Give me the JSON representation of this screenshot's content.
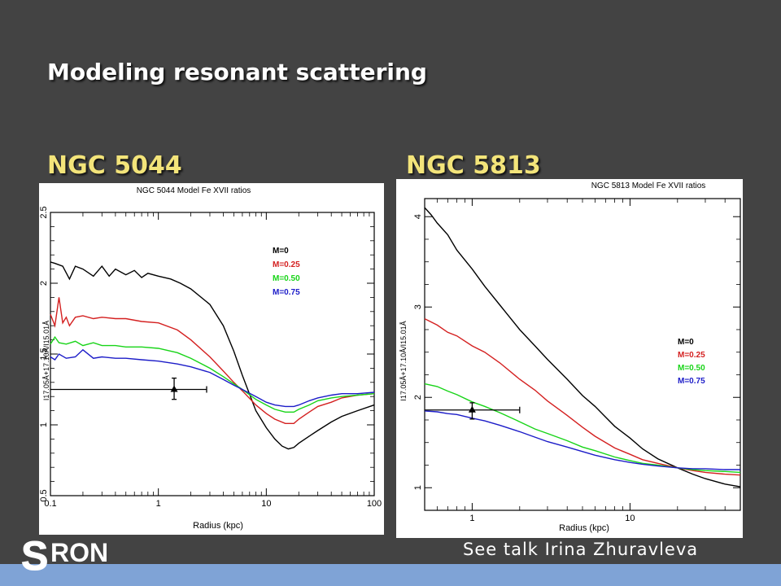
{
  "slide": {
    "title": "Modeling resonant scattering",
    "credit": "See talk Irina Zhuravleva",
    "logo_text": "SRON"
  },
  "colors": {
    "background": "#434343",
    "title": "#ffffff",
    "subtitle": "#f3e47a",
    "footer": "#7fa3d6"
  },
  "chart_data": [
    {
      "type": "line",
      "heading": "NGC 5044",
      "title": "NGC 5044 Model Fe XVII ratios",
      "xlabel": "Radius (kpc)",
      "ylabel": "I17.05Å+17.10Å/I15.01Å",
      "xscale": "log",
      "xlim": [
        0.1,
        100
      ],
      "ylim": [
        0.5,
        2.5
      ],
      "xticks": [
        "0.1",
        "1",
        "10",
        "100"
      ],
      "yticks": [
        "0.5",
        "1",
        "1.5",
        "2",
        "2.5"
      ],
      "legend_position": "upper-right",
      "series": [
        {
          "name": "M=0",
          "color": "#000000",
          "x": [
            0.1,
            0.11,
            0.13,
            0.15,
            0.17,
            0.2,
            0.25,
            0.3,
            0.35,
            0.4,
            0.5,
            0.6,
            0.7,
            0.8,
            1.0,
            1.3,
            1.6,
            2.0,
            3.0,
            4.0,
            5.0,
            6.0,
            8.0,
            10.0,
            12.0,
            14.0,
            16.0,
            18.0,
            20.0,
            25.0,
            30.0,
            40.0,
            50.0,
            70.0,
            100.0
          ],
          "y": [
            2.15,
            2.14,
            2.12,
            2.03,
            2.12,
            2.1,
            2.05,
            2.12,
            2.05,
            2.1,
            2.06,
            2.09,
            2.04,
            2.07,
            2.05,
            2.03,
            2.0,
            1.96,
            1.85,
            1.7,
            1.52,
            1.35,
            1.1,
            0.98,
            0.9,
            0.85,
            0.83,
            0.84,
            0.87,
            0.92,
            0.96,
            1.02,
            1.06,
            1.1,
            1.14
          ]
        },
        {
          "name": "M=0.25",
          "color": "#d42020",
          "x": [
            0.1,
            0.11,
            0.12,
            0.13,
            0.14,
            0.15,
            0.17,
            0.2,
            0.25,
            0.3,
            0.4,
            0.5,
            0.7,
            1.0,
            1.5,
            2.0,
            3.0,
            4.0,
            5.0,
            6.0,
            8.0,
            10.0,
            12.0,
            15.0,
            18.0,
            20.0,
            25.0,
            30.0,
            40.0,
            50.0,
            70.0,
            100.0
          ],
          "y": [
            1.78,
            1.7,
            1.9,
            1.72,
            1.76,
            1.7,
            1.76,
            1.77,
            1.75,
            1.76,
            1.75,
            1.75,
            1.73,
            1.72,
            1.67,
            1.6,
            1.48,
            1.38,
            1.3,
            1.24,
            1.14,
            1.08,
            1.04,
            1.01,
            1.01,
            1.04,
            1.09,
            1.13,
            1.16,
            1.19,
            1.21,
            1.22
          ]
        },
        {
          "name": "M=0.50",
          "color": "#18d418",
          "x": [
            0.1,
            0.11,
            0.12,
            0.14,
            0.17,
            0.2,
            0.25,
            0.3,
            0.4,
            0.5,
            0.7,
            1.0,
            1.5,
            2.0,
            3.0,
            4.0,
            5.0,
            6.0,
            8.0,
            10.0,
            12.0,
            15.0,
            18.0,
            20.0,
            25.0,
            30.0,
            40.0,
            50.0,
            70.0,
            100.0
          ],
          "y": [
            1.57,
            1.62,
            1.58,
            1.57,
            1.59,
            1.56,
            1.58,
            1.56,
            1.56,
            1.55,
            1.55,
            1.54,
            1.51,
            1.47,
            1.4,
            1.34,
            1.29,
            1.25,
            1.18,
            1.14,
            1.11,
            1.09,
            1.09,
            1.11,
            1.14,
            1.17,
            1.19,
            1.2,
            1.21,
            1.22
          ]
        },
        {
          "name": "M=0.75",
          "color": "#1c1cc8",
          "x": [
            0.1,
            0.11,
            0.12,
            0.14,
            0.17,
            0.2,
            0.25,
            0.3,
            0.4,
            0.5,
            0.7,
            1.0,
            1.5,
            2.0,
            3.0,
            4.0,
            5.0,
            6.0,
            8.0,
            10.0,
            12.0,
            15.0,
            18.0,
            20.0,
            25.0,
            30.0,
            40.0,
            50.0,
            70.0,
            100.0
          ],
          "y": [
            1.48,
            1.46,
            1.5,
            1.47,
            1.48,
            1.53,
            1.47,
            1.48,
            1.47,
            1.47,
            1.46,
            1.45,
            1.43,
            1.41,
            1.37,
            1.32,
            1.28,
            1.25,
            1.2,
            1.16,
            1.14,
            1.13,
            1.13,
            1.14,
            1.17,
            1.19,
            1.21,
            1.22,
            1.22,
            1.23
          ]
        }
      ],
      "observation": {
        "x": 1.4,
        "y": 1.25,
        "xerr": [
          0.1,
          2.8
        ],
        "yerr": [
          1.18,
          1.33
        ]
      }
    },
    {
      "type": "line",
      "heading": "NGC 5813",
      "title": "NGC 5813 Model Fe XVII ratios",
      "xlabel": "Radius (kpc)",
      "ylabel": "I17.05Å+17.10Å/I15.01Å",
      "xscale": "log",
      "xlim": [
        0.5,
        50
      ],
      "ylim": [
        0.75,
        4.2
      ],
      "xticks": [
        "1",
        "10"
      ],
      "yticks": [
        "1",
        "2",
        "3",
        "4"
      ],
      "legend_position": "middle-right",
      "series": [
        {
          "name": "M=0",
          "color": "#000000",
          "x": [
            0.5,
            0.55,
            0.6,
            0.7,
            0.8,
            1.0,
            1.2,
            1.5,
            2.0,
            2.5,
            3.0,
            4.0,
            5.0,
            6.0,
            8.0,
            10.0,
            12.0,
            15.0,
            20.0,
            25.0,
            30.0,
            40.0,
            50.0
          ],
          "y": [
            4.1,
            4.02,
            3.93,
            3.8,
            3.63,
            3.42,
            3.23,
            3.02,
            2.75,
            2.57,
            2.42,
            2.2,
            2.02,
            1.9,
            1.68,
            1.55,
            1.43,
            1.32,
            1.22,
            1.15,
            1.1,
            1.04,
            1.01
          ]
        },
        {
          "name": "M=0.25",
          "color": "#d42020",
          "x": [
            0.5,
            0.6,
            0.7,
            0.8,
            1.0,
            1.2,
            1.5,
            2.0,
            2.5,
            3.0,
            4.0,
            5.0,
            6.0,
            8.0,
            10.0,
            12.0,
            15.0,
            20.0,
            25.0,
            30.0,
            40.0,
            50.0
          ],
          "y": [
            2.87,
            2.8,
            2.72,
            2.68,
            2.57,
            2.5,
            2.38,
            2.2,
            2.08,
            1.96,
            1.8,
            1.67,
            1.57,
            1.44,
            1.37,
            1.31,
            1.27,
            1.22,
            1.19,
            1.17,
            1.15,
            1.14
          ]
        },
        {
          "name": "M=0.50",
          "color": "#18d418",
          "x": [
            0.5,
            0.6,
            0.7,
            0.8,
            1.0,
            1.2,
            1.5,
            2.0,
            2.5,
            3.0,
            4.0,
            5.0,
            6.0,
            8.0,
            10.0,
            12.0,
            15.0,
            20.0,
            25.0,
            30.0,
            40.0,
            50.0
          ],
          "y": [
            2.15,
            2.12,
            2.07,
            2.03,
            1.95,
            1.9,
            1.83,
            1.73,
            1.65,
            1.6,
            1.52,
            1.45,
            1.41,
            1.34,
            1.3,
            1.27,
            1.25,
            1.22,
            1.2,
            1.19,
            1.18,
            1.17
          ]
        },
        {
          "name": "M=0.75",
          "color": "#1c1cc8",
          "x": [
            0.5,
            0.6,
            0.7,
            0.8,
            1.0,
            1.2,
            1.5,
            2.0,
            2.5,
            3.0,
            4.0,
            5.0,
            6.0,
            8.0,
            10.0,
            12.0,
            15.0,
            20.0,
            25.0,
            30.0,
            40.0,
            50.0
          ],
          "y": [
            1.85,
            1.84,
            1.82,
            1.81,
            1.77,
            1.74,
            1.69,
            1.62,
            1.56,
            1.51,
            1.45,
            1.4,
            1.36,
            1.31,
            1.28,
            1.26,
            1.24,
            1.22,
            1.21,
            1.21,
            1.2,
            1.2
          ]
        }
      ],
      "observation": {
        "x": 1.0,
        "y": 1.86,
        "xerr": [
          0.5,
          2.0
        ],
        "yerr": [
          1.76,
          1.94
        ]
      }
    }
  ]
}
